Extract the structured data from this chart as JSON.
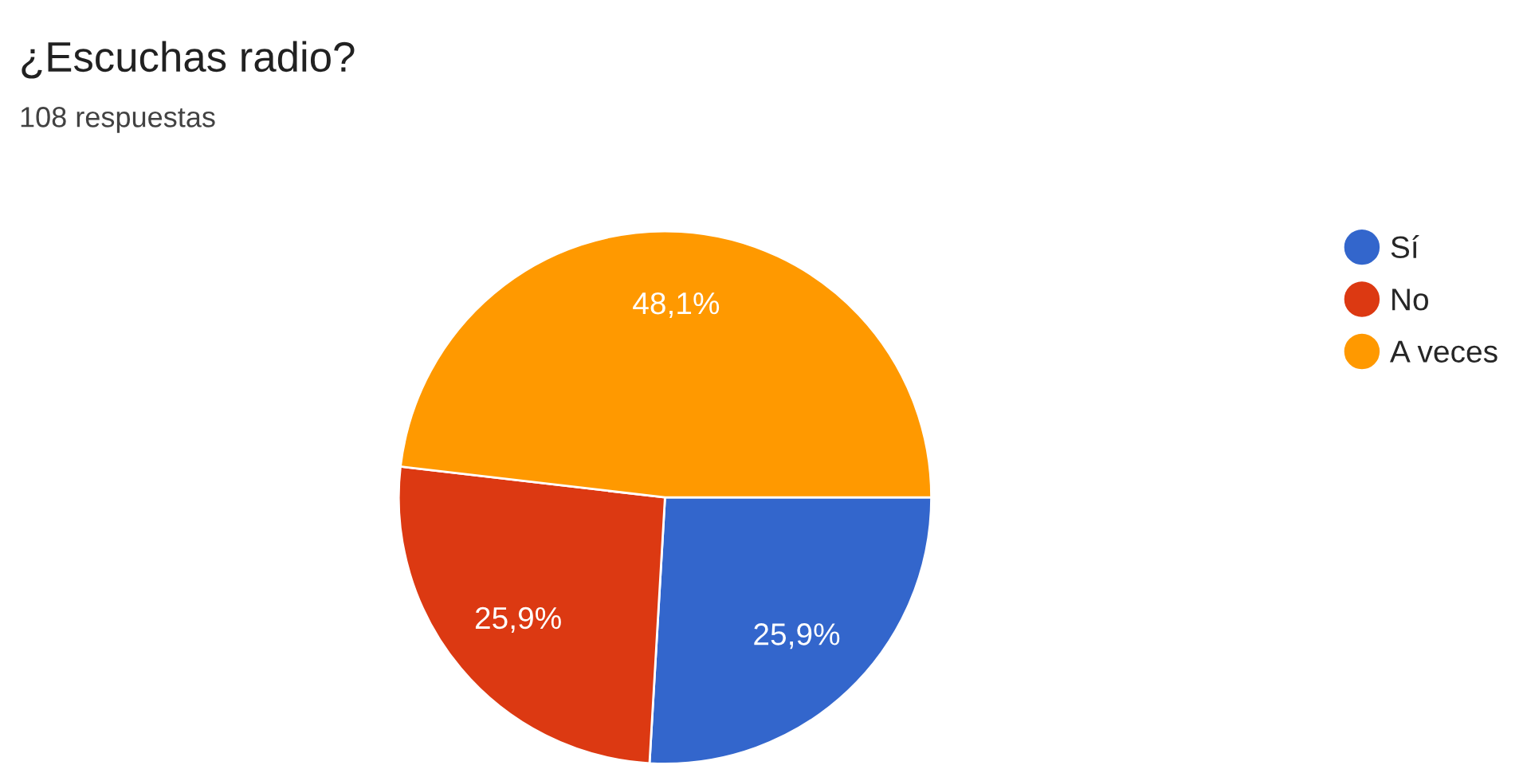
{
  "chart_data": {
    "type": "pie",
    "title": "¿Escuchas radio?",
    "subtitle": "108 respuestas",
    "categories": [
      "Sí",
      "No",
      "A veces"
    ],
    "values": [
      25.9,
      25.9,
      48.1
    ],
    "value_labels": [
      "25,9%",
      "25,9%",
      "48,1%"
    ],
    "colors": [
      "#3366cc",
      "#dc3912",
      "#ff9900"
    ],
    "legend": "right"
  }
}
